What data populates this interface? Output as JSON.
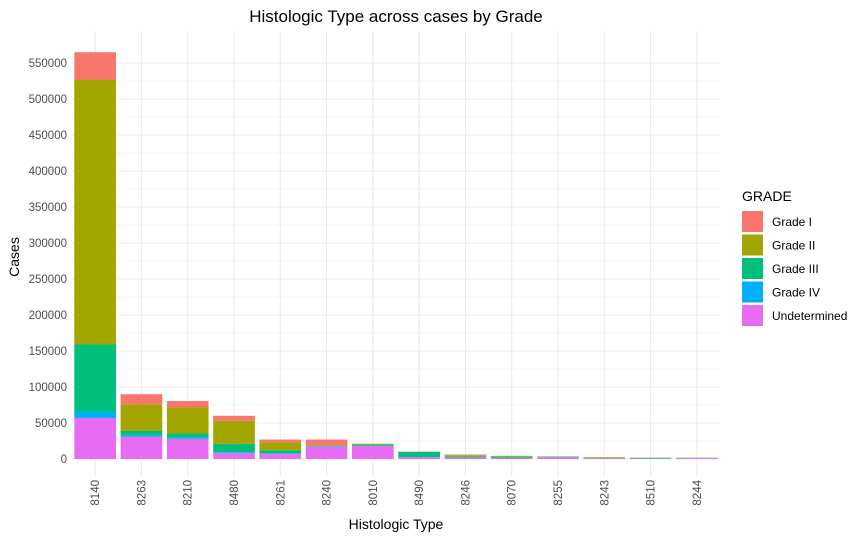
{
  "chart_data": {
    "type": "bar",
    "stacked": true,
    "title": "Histologic Type across cases by Grade",
    "xlabel": "Histologic Type",
    "ylabel": "Cases",
    "ylim": [
      -22000,
      592000
    ],
    "yticks": [
      0,
      50000,
      100000,
      150000,
      200000,
      250000,
      300000,
      350000,
      400000,
      450000,
      500000,
      550000
    ],
    "ytick_labels": [
      "0",
      "50000",
      "100000",
      "150000",
      "200000",
      "250000",
      "300000",
      "350000",
      "400000",
      "450000",
      "500000",
      "550000"
    ],
    "grid": true,
    "legend_position": "right",
    "legend_title": "GRADE",
    "categories": [
      "8140",
      "8263",
      "8210",
      "8480",
      "8261",
      "8240",
      "8010",
      "8490",
      "8246",
      "8070",
      "8255",
      "8243",
      "8510",
      "8244"
    ],
    "series": [
      {
        "name": "Undetermined",
        "color": "#E76BF3",
        "values": [
          57000,
          31000,
          28000,
          8000,
          7000,
          17000,
          18000,
          2500,
          2000,
          1500,
          2000,
          1000,
          600,
          1200
        ]
      },
      {
        "name": "Grade IV",
        "color": "#00B0F6",
        "values": [
          9000,
          2500,
          2000,
          1500,
          1000,
          500,
          500,
          200,
          200,
          200,
          500,
          200,
          300,
          200
        ]
      },
      {
        "name": "Grade III",
        "color": "#00BF7D",
        "values": [
          93000,
          5500,
          5500,
          11500,
          4000,
          500,
          1500,
          7000,
          1500,
          1500,
          500,
          300,
          800,
          200
        ]
      },
      {
        "name": "Grade II",
        "color": "#A3A500",
        "values": [
          368000,
          37000,
          36000,
          32000,
          11000,
          1000,
          1000,
          500,
          1500,
          1000,
          500,
          800,
          200,
          300
        ]
      },
      {
        "name": "Grade I",
        "color": "#F8766D",
        "values": [
          38000,
          14000,
          9000,
          7000,
          4000,
          8000,
          300,
          200,
          1000,
          200,
          200,
          500,
          100,
          100
        ]
      }
    ],
    "legend_order": [
      "Grade I",
      "Grade II",
      "Grade III",
      "Grade IV",
      "Undetermined"
    ]
  }
}
